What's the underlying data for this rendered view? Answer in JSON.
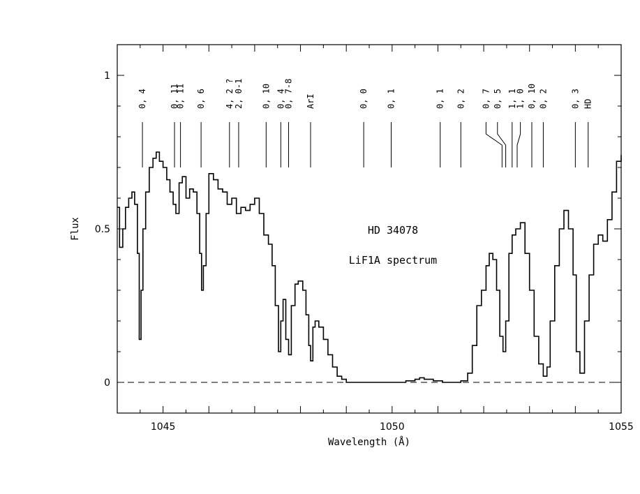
{
  "chart_data": {
    "type": "line",
    "xlabel": "Wavelength (Å)",
    "ylabel": "Flux",
    "xlim": [
      1044.0,
      1055.0
    ],
    "ylim": [
      -0.1,
      1.1
    ],
    "x_ticks": [
      "1045",
      "1050",
      "1055"
    ],
    "x_tick_values": [
      1045,
      1050,
      1055
    ],
    "y_ticks": [
      "0",
      "0.5",
      "1"
    ],
    "y_tick_values": [
      0,
      0.5,
      1
    ],
    "reference_line": {
      "y": 0,
      "style": "dashed"
    },
    "annotations": [
      "HD 34078",
      "LiF1A spectrum"
    ],
    "line_ids": [
      {
        "label": "0, 4",
        "x": 1044.55
      },
      {
        "label": "0, 11",
        "x": 1045.25
      },
      {
        "label": "0, 11",
        "x": 1045.38
      },
      {
        "label": "0, 6",
        "x": 1045.83
      },
      {
        "label": "4, 2 ?",
        "x": 1046.45
      },
      {
        "label": "2, 0-1",
        "x": 1046.65
      },
      {
        "label": "0, 10",
        "x": 1047.25
      },
      {
        "label": "0, 4",
        "x": 1047.57
      },
      {
        "label": "0, 7-8",
        "x": 1047.74
      },
      {
        "label": "ArI",
        "x": 1048.22
      },
      {
        "label": "0, 0",
        "x": 1049.38
      },
      {
        "label": "0, 1",
        "x": 1049.98
      },
      {
        "label": "0, 1",
        "x": 1051.05
      },
      {
        "label": "0, 2",
        "x": 1051.5
      },
      {
        "label": "0, 7",
        "x": 1052.05,
        "x_end": 1052.4
      },
      {
        "label": "0, 5",
        "x": 1052.3,
        "x_end": 1052.48
      },
      {
        "label": "1, 1",
        "x": 1052.62
      },
      {
        "label": "1, 0",
        "x": 1052.8,
        "x_end": 1052.73
      },
      {
        "label": "0, 10",
        "x": 1053.05
      },
      {
        "label": "0, 2",
        "x": 1053.3
      },
      {
        "label": "0, 3",
        "x": 1054.0
      },
      {
        "label": "HD",
        "x": 1054.28
      }
    ],
    "series": [
      {
        "x": [
          1044.0,
          1044.05,
          1044.12,
          1044.18,
          1044.25,
          1044.32,
          1044.38,
          1044.44,
          1044.48,
          1044.52,
          1044.56,
          1044.62,
          1044.7,
          1044.78,
          1044.85,
          1044.92,
          1045.0,
          1045.08,
          1045.15,
          1045.22,
          1045.28,
          1045.35,
          1045.42,
          1045.5,
          1045.58,
          1045.66,
          1045.74,
          1045.8,
          1045.84,
          1045.88,
          1045.94,
          1046.0,
          1046.1,
          1046.2,
          1046.3,
          1046.4,
          1046.5,
          1046.6,
          1046.7,
          1046.8,
          1046.9,
          1047.0,
          1047.1,
          1047.2,
          1047.3,
          1047.38,
          1047.45,
          1047.52,
          1047.57,
          1047.62,
          1047.68,
          1047.74,
          1047.8,
          1047.88,
          1047.95,
          1048.05,
          1048.12,
          1048.18,
          1048.22,
          1048.27,
          1048.32,
          1048.4,
          1048.5,
          1048.6,
          1048.7,
          1048.8,
          1048.9,
          1049.0,
          1049.2,
          1049.5,
          1049.8,
          1050.1,
          1050.3,
          1050.5,
          1050.6,
          1050.7,
          1050.9,
          1051.1,
          1051.3,
          1051.5,
          1051.65,
          1051.75,
          1051.85,
          1051.95,
          1052.05,
          1052.12,
          1052.2,
          1052.28,
          1052.35,
          1052.42,
          1052.48,
          1052.55,
          1052.62,
          1052.7,
          1052.8,
          1052.9,
          1053.0,
          1053.1,
          1053.2,
          1053.3,
          1053.38,
          1053.45,
          1053.55,
          1053.65,
          1053.75,
          1053.85,
          1053.95,
          1054.02,
          1054.1,
          1054.2,
          1054.3,
          1054.4,
          1054.5,
          1054.6,
          1054.7,
          1054.8,
          1054.9,
          1055.0
        ],
        "values": [
          0.57,
          0.44,
          0.5,
          0.57,
          0.6,
          0.62,
          0.58,
          0.42,
          0.14,
          0.3,
          0.5,
          0.62,
          0.7,
          0.73,
          0.75,
          0.72,
          0.7,
          0.66,
          0.62,
          0.58,
          0.55,
          0.65,
          0.67,
          0.6,
          0.63,
          0.62,
          0.55,
          0.42,
          0.3,
          0.38,
          0.55,
          0.68,
          0.66,
          0.63,
          0.62,
          0.58,
          0.6,
          0.55,
          0.57,
          0.56,
          0.58,
          0.6,
          0.55,
          0.48,
          0.45,
          0.38,
          0.25,
          0.1,
          0.2,
          0.27,
          0.14,
          0.09,
          0.25,
          0.32,
          0.33,
          0.3,
          0.22,
          0.12,
          0.07,
          0.18,
          0.2,
          0.18,
          0.14,
          0.09,
          0.05,
          0.02,
          0.01,
          0.0,
          0.0,
          0.0,
          0.0,
          0.0,
          0.005,
          0.01,
          0.015,
          0.01,
          0.005,
          0.0,
          0.0,
          0.005,
          0.03,
          0.12,
          0.25,
          0.3,
          0.38,
          0.42,
          0.4,
          0.3,
          0.15,
          0.1,
          0.2,
          0.42,
          0.48,
          0.5,
          0.52,
          0.42,
          0.3,
          0.15,
          0.06,
          0.02,
          0.05,
          0.2,
          0.38,
          0.5,
          0.56,
          0.5,
          0.35,
          0.1,
          0.03,
          0.2,
          0.35,
          0.45,
          0.48,
          0.46,
          0.53,
          0.62,
          0.72,
          0.74
        ]
      }
    ]
  }
}
